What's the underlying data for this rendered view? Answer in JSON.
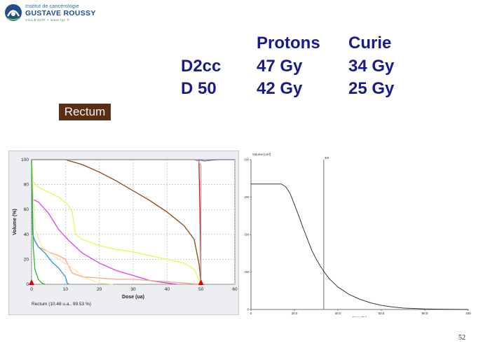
{
  "logo": {
    "line1": "Institut de cancérologie",
    "line2": "GUSTAVE ROUSSY",
    "line3": "VILLEJUIF • www.igr.fr"
  },
  "table": {
    "col_protons": "Protons",
    "col_curie": "Curie",
    "row1_label": "D2cc",
    "row1_protons": "47 Gy",
    "row1_curie": "34 Gy",
    "row2_label": "D 50",
    "row2_protons": "42 Gy",
    "row2_curie": "25 Gy"
  },
  "rectum_label": "Rectum",
  "page_number": "52",
  "colors": {
    "title_text": "#1a1a8c",
    "rectum_bg": "#5a2e12",
    "rectum_curve": "#8b4513"
  },
  "chart_data": [
    {
      "type": "line",
      "xlabel": "Dose (ua)",
      "ylabel": "Volume (%)",
      "caption": "Rectum (10.48 u.a., 99.53 %)",
      "xlim": [
        0,
        60
      ],
      "ylim": [
        0,
        100
      ],
      "x_ticks": [
        "0",
        "10",
        "20",
        "30",
        "40",
        "50",
        "60"
      ],
      "y_ticks": [
        "0",
        "20",
        "40",
        "60",
        "80",
        "100"
      ],
      "grid": true,
      "markers": [
        {
          "x": 0,
          "y": 0
        },
        {
          "x": 50,
          "y": 0
        }
      ],
      "series": [
        {
          "color": "#8b4513",
          "points": [
            [
              0,
              100
            ],
            [
              10,
              100
            ],
            [
              15,
              96
            ],
            [
              20,
              90
            ],
            [
              25,
              83
            ],
            [
              30,
              75
            ],
            [
              35,
              67
            ],
            [
              40,
              58
            ],
            [
              45,
              47
            ],
            [
              48,
              36
            ],
            [
              49.5,
              15
            ],
            [
              50,
              0
            ]
          ]
        },
        {
          "color": "#e01010",
          "points": [
            [
              0,
              100
            ],
            [
              48,
              100
            ],
            [
              49.4,
              99
            ],
            [
              49.7,
              60
            ],
            [
              50,
              0
            ]
          ]
        },
        {
          "color": "#7070a0",
          "points": [
            [
              0,
              100
            ],
            [
              49,
              100
            ],
            [
              51,
              99
            ],
            [
              55,
              100
            ],
            [
              60,
              100
            ]
          ]
        },
        {
          "color": "#f2f25a",
          "points": [
            [
              0,
              100
            ],
            [
              0.5,
              82
            ],
            [
              2,
              78
            ],
            [
              5,
              74
            ],
            [
              8,
              70
            ],
            [
              11,
              63
            ],
            [
              12,
              58
            ],
            [
              13,
              40
            ],
            [
              15,
              36
            ],
            [
              20,
              31
            ],
            [
              25,
              28
            ],
            [
              30,
              26
            ],
            [
              35,
              23
            ],
            [
              40,
              20
            ],
            [
              45,
              17
            ],
            [
              48,
              12
            ],
            [
              50,
              0
            ]
          ]
        },
        {
          "color": "#e040e0",
          "points": [
            [
              0,
              100
            ],
            [
              0.5,
              68
            ],
            [
              2,
              66
            ],
            [
              5,
              57
            ],
            [
              8,
              44
            ],
            [
              11,
              35
            ],
            [
              15,
              25
            ],
            [
              20,
              17
            ],
            [
              25,
              11
            ],
            [
              30,
              7
            ],
            [
              35,
              3
            ],
            [
              40,
              1
            ],
            [
              43,
              0
            ]
          ]
        },
        {
          "color": "#f4aa80",
          "points": [
            [
              0,
              100
            ],
            [
              0.5,
              37
            ],
            [
              2,
              30
            ],
            [
              5,
              26
            ],
            [
              8,
              23
            ],
            [
              10,
              20
            ],
            [
              12,
              9
            ],
            [
              15,
              6
            ],
            [
              20,
              5
            ],
            [
              25,
              4
            ],
            [
              30,
              4
            ],
            [
              35,
              3
            ],
            [
              40,
              2
            ],
            [
              45,
              1
            ],
            [
              50,
              0
            ]
          ]
        },
        {
          "color": "#2a98d8",
          "points": [
            [
              0,
              100
            ],
            [
              0.3,
              40
            ],
            [
              1,
              35
            ],
            [
              2,
              30
            ],
            [
              4,
              25
            ],
            [
              6,
              18
            ],
            [
              8,
              13
            ],
            [
              10,
              6
            ],
            [
              10.5,
              1
            ],
            [
              11,
              0
            ]
          ]
        },
        {
          "color": "#f4e8a8",
          "points": [
            [
              0,
              100
            ],
            [
              1,
              45
            ],
            [
              3,
              30
            ],
            [
              5,
              26
            ],
            [
              8,
              20
            ],
            [
              11,
              15
            ],
            [
              14,
              9
            ],
            [
              16,
              5
            ],
            [
              20,
              1
            ],
            [
              24,
              0
            ]
          ]
        },
        {
          "color": "#28b828",
          "points": [
            [
              0,
              100
            ],
            [
              0.5,
              30
            ],
            [
              1,
              12
            ],
            [
              2,
              4
            ],
            [
              3,
              1
            ],
            [
              4,
              0
            ]
          ]
        },
        {
          "color": "#b0b0b0",
          "points": [
            [
              0,
              100
            ],
            [
              49,
              100
            ],
            [
              50,
              95
            ],
            [
              50,
              0
            ]
          ]
        }
      ]
    },
    {
      "type": "line",
      "xlabel": "Dose (Gy)",
      "ylabel": "Volume [cm³]",
      "xlim": [
        0,
        100
      ],
      "ylim": [
        0,
        8
      ],
      "x_ticks": [
        "0",
        "20.0",
        "40.0",
        "60.0",
        "80.0",
        "100"
      ],
      "y_ticks": [
        "0",
        "2.00",
        "4.00",
        "6.00",
        "8.00"
      ],
      "vline": {
        "x": 33.5,
        "label": "3/0"
      },
      "series": [
        {
          "color": "#222222",
          "points": [
            [
              0,
              6.7
            ],
            [
              10,
              6.7
            ],
            [
              14,
              6.7
            ],
            [
              16,
              6.55
            ],
            [
              18,
              6.2
            ],
            [
              20,
              5.6
            ],
            [
              22,
              5.0
            ],
            [
              24,
              4.35
            ],
            [
              26,
              3.75
            ],
            [
              28,
              3.15
            ],
            [
              30,
              2.7
            ],
            [
              32,
              2.3
            ],
            [
              34,
              1.95
            ],
            [
              36,
              1.65
            ],
            [
              40,
              1.2
            ],
            [
              45,
              0.82
            ],
            [
              50,
              0.55
            ],
            [
              55,
              0.36
            ],
            [
              60,
              0.22
            ],
            [
              65,
              0.14
            ],
            [
              70,
              0.08
            ],
            [
              80,
              0.03
            ],
            [
              90,
              0.01
            ],
            [
              100,
              0
            ]
          ]
        }
      ]
    }
  ]
}
